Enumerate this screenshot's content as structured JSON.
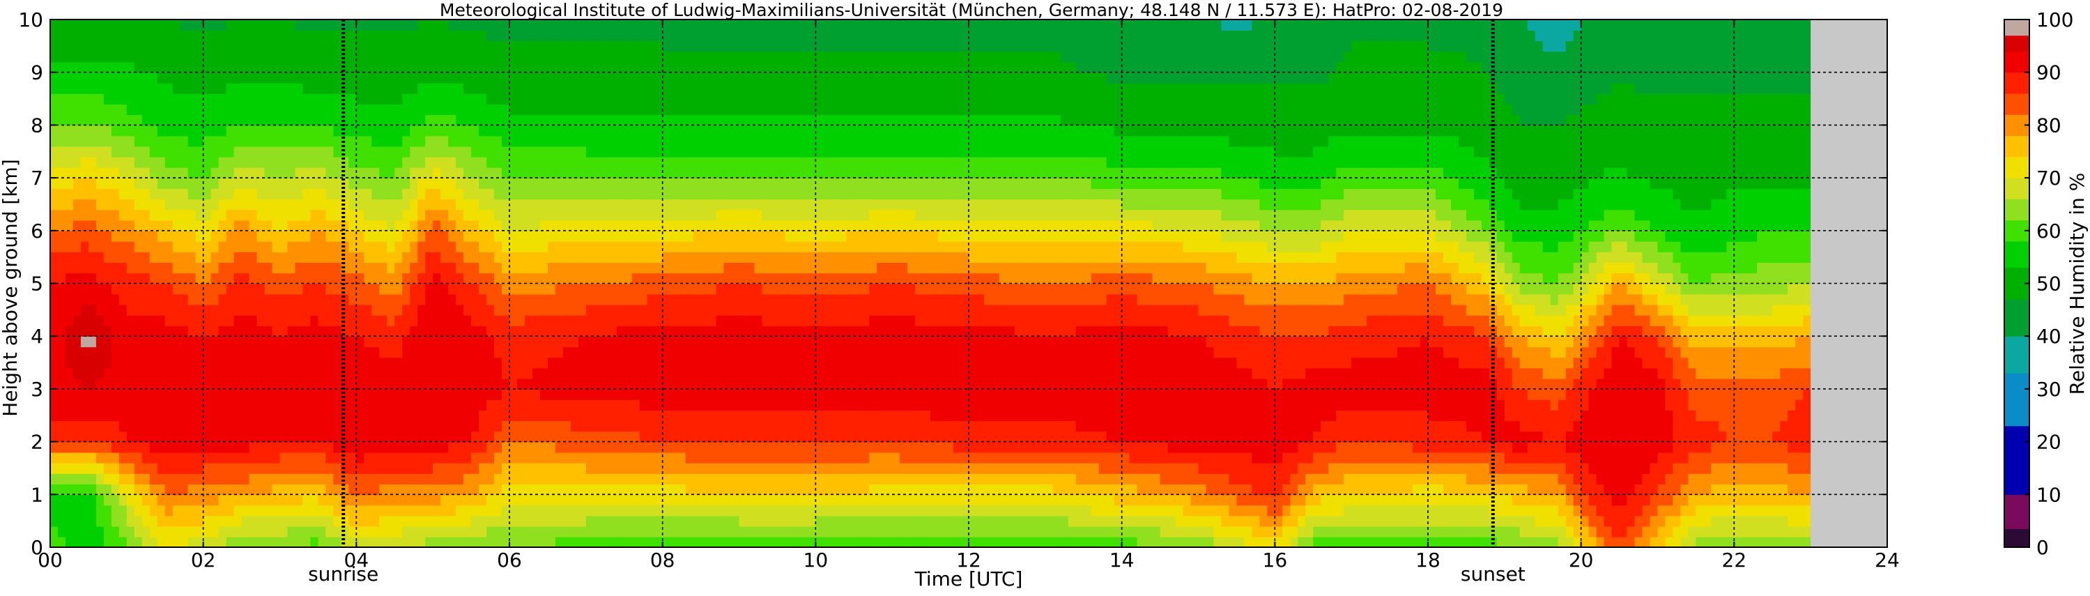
{
  "chart_data": {
    "type": "heatmap",
    "title": "Meteorological Institute of Ludwig-Maximilians-Universität (München, Germany; 48.148 N / 11.573 E):    HatPro: 02-08-2019",
    "xlabel": "Time [UTC]",
    "ylabel": "Height above ground [km]",
    "colorbar_label": "Relative Humidity in %",
    "xlim": [
      0,
      24
    ],
    "ylim": [
      0,
      10
    ],
    "x_ticks": [
      "00",
      "02",
      "04",
      "06",
      "08",
      "10",
      "12",
      "14",
      "16",
      "18",
      "20",
      "22",
      "24"
    ],
    "y_ticks": [
      "0",
      "1",
      "2",
      "3",
      "4",
      "5",
      "6",
      "7",
      "8",
      "9",
      "10"
    ],
    "colorbar_ticks": [
      "0",
      "10",
      "20",
      "30",
      "40",
      "50",
      "60",
      "70",
      "80",
      "90",
      "100"
    ],
    "grid": true,
    "data_end_hour": 23.0,
    "no_data_color": "#c8c8c8",
    "events": [
      {
        "label": "sunrise",
        "hour": 3.83
      },
      {
        "label": "sunset",
        "hour": 18.85
      }
    ],
    "colorscale": [
      {
        "from": 0,
        "to": 3.5,
        "color": "#2b0a33"
      },
      {
        "from": 3.5,
        "to": 10,
        "color": "#7a0a5c"
      },
      {
        "from": 10,
        "to": 23,
        "color": "#0000b0"
      },
      {
        "from": 23,
        "to": 33,
        "color": "#0a8cc8"
      },
      {
        "from": 33,
        "to": 40,
        "color": "#0aa8a0"
      },
      {
        "from": 40,
        "to": 47,
        "color": "#00a030"
      },
      {
        "from": 47,
        "to": 53,
        "color": "#00b000"
      },
      {
        "from": 53,
        "to": 58,
        "color": "#00d000"
      },
      {
        "from": 58,
        "to": 62,
        "color": "#40e000"
      },
      {
        "from": 62,
        "to": 66,
        "color": "#90e020"
      },
      {
        "from": 66,
        "to": 70,
        "color": "#d0e020"
      },
      {
        "from": 70,
        "to": 74,
        "color": "#f0e000"
      },
      {
        "from": 74,
        "to": 78,
        "color": "#ffc000"
      },
      {
        "from": 78,
        "to": 82,
        "color": "#ff9000"
      },
      {
        "from": 82,
        "to": 86,
        "color": "#ff5000"
      },
      {
        "from": 86,
        "to": 90,
        "color": "#ff2000"
      },
      {
        "from": 90,
        "to": 94,
        "color": "#f00000"
      },
      {
        "from": 94,
        "to": 97,
        "color": "#d80000"
      },
      {
        "from": 97,
        "to": 100,
        "color": "#c0a8a0"
      }
    ],
    "rh_profiles": [
      {
        "hour": 0.0,
        "rh": [
          60,
          55,
          88,
          92,
          92,
          90,
          82,
          72,
          62,
          55,
          48
        ]
      },
      {
        "hour": 0.5,
        "rh": [
          55,
          55,
          86,
          94,
          98,
          92,
          84,
          74,
          62,
          55,
          48
        ]
      },
      {
        "hour": 1.0,
        "rh": [
          60,
          70,
          90,
          92,
          92,
          88,
          80,
          70,
          60,
          54,
          48
        ]
      },
      {
        "hour": 1.5,
        "rh": [
          70,
          82,
          92,
          94,
          92,
          86,
          76,
          64,
          56,
          52,
          47
        ]
      },
      {
        "hour": 2.0,
        "rh": [
          68,
          80,
          92,
          93,
          90,
          82,
          72,
          62,
          56,
          50,
          46
        ]
      },
      {
        "hour": 2.5,
        "rh": [
          62,
          78,
          92,
          94,
          92,
          88,
          80,
          68,
          58,
          52,
          47
        ]
      },
      {
        "hour": 3.0,
        "rh": [
          62,
          76,
          90,
          93,
          90,
          84,
          74,
          66,
          58,
          52,
          47
        ]
      },
      {
        "hour": 3.5,
        "rh": [
          60,
          75,
          90,
          94,
          92,
          86,
          78,
          68,
          58,
          50,
          46
        ]
      },
      {
        "hour": 4.0,
        "rh": [
          68,
          82,
          94,
          94,
          90,
          84,
          74,
          64,
          56,
          50,
          46
        ]
      },
      {
        "hour": 4.5,
        "rh": [
          66,
          80,
          92,
          92,
          88,
          80,
          70,
          62,
          55,
          50,
          46
        ]
      },
      {
        "hour": 5.0,
        "rh": [
          64,
          80,
          92,
          94,
          94,
          92,
          84,
          72,
          60,
          52,
          47
        ]
      },
      {
        "hour": 5.5,
        "rh": [
          62,
          78,
          90,
          93,
          92,
          86,
          76,
          66,
          58,
          50,
          46
        ]
      },
      {
        "hour": 6.0,
        "rh": [
          62,
          72,
          82,
          90,
          88,
          80,
          70,
          62,
          55,
          48,
          46
        ]
      },
      {
        "hour": 7.0,
        "rh": [
          60,
          72,
          84,
          92,
          90,
          82,
          72,
          62,
          54,
          48,
          46
        ]
      },
      {
        "hour": 8.0,
        "rh": [
          58,
          72,
          86,
          92,
          92,
          84,
          72,
          62,
          54,
          48,
          46
        ]
      },
      {
        "hour": 9.0,
        "rh": [
          58,
          74,
          86,
          92,
          92,
          86,
          74,
          62,
          54,
          48,
          45
        ]
      },
      {
        "hour": 10.0,
        "rh": [
          58,
          74,
          86,
          92,
          92,
          84,
          72,
          62,
          54,
          48,
          45
        ]
      },
      {
        "hour": 11.0,
        "rh": [
          58,
          72,
          86,
          92,
          92,
          86,
          74,
          62,
          54,
          48,
          45
        ]
      },
      {
        "hour": 12.0,
        "rh": [
          58,
          72,
          88,
          94,
          92,
          84,
          72,
          62,
          54,
          48,
          45
        ]
      },
      {
        "hour": 13.0,
        "rh": [
          58,
          72,
          88,
          92,
          90,
          82,
          72,
          62,
          54,
          48,
          46
        ]
      },
      {
        "hour": 14.0,
        "rh": [
          60,
          76,
          90,
          94,
          92,
          84,
          72,
          60,
          52,
          46,
          42
        ]
      },
      {
        "hour": 15.0,
        "rh": [
          62,
          80,
          92,
          92,
          90,
          82,
          70,
          60,
          52,
          46,
          42
        ]
      },
      {
        "hour": 15.5,
        "rh": [
          68,
          84,
          92,
          92,
          88,
          80,
          68,
          58,
          50,
          46,
          38
        ]
      },
      {
        "hour": 16.0,
        "rh": [
          72,
          88,
          92,
          90,
          86,
          78,
          66,
          56,
          50,
          46,
          42
        ]
      },
      {
        "hour": 16.5,
        "rh": [
          60,
          76,
          90,
          92,
          86,
          78,
          66,
          56,
          50,
          46,
          44
        ]
      },
      {
        "hour": 17.0,
        "rh": [
          60,
          74,
          86,
          92,
          88,
          80,
          70,
          60,
          52,
          48,
          46
        ]
      },
      {
        "hour": 18.0,
        "rh": [
          60,
          72,
          88,
          92,
          90,
          82,
          70,
          60,
          52,
          48,
          46
        ]
      },
      {
        "hour": 18.8,
        "rh": [
          60,
          74,
          90,
          92,
          86,
          74,
          62,
          54,
          50,
          47,
          46
        ]
      },
      {
        "hour": 19.2,
        "rh": [
          62,
          76,
          92,
          86,
          78,
          64,
          56,
          50,
          47,
          44,
          40
        ]
      },
      {
        "hour": 19.7,
        "rh": [
          64,
          78,
          90,
          84,
          74,
          62,
          56,
          50,
          47,
          42,
          36
        ]
      },
      {
        "hour": 20.0,
        "rh": [
          72,
          86,
          92,
          88,
          80,
          66,
          58,
          52,
          48,
          44,
          40
        ]
      },
      {
        "hour": 20.5,
        "rh": [
          86,
          92,
          94,
          94,
          90,
          78,
          62,
          54,
          50,
          46,
          42
        ]
      },
      {
        "hour": 21.0,
        "rh": [
          74,
          86,
          92,
          92,
          86,
          70,
          58,
          52,
          48,
          46,
          44
        ]
      },
      {
        "hour": 21.5,
        "rh": [
          64,
          78,
          88,
          84,
          76,
          62,
          54,
          50,
          48,
          46,
          46
        ]
      },
      {
        "hour": 22.0,
        "rh": [
          62,
          76,
          86,
          84,
          76,
          64,
          56,
          52,
          48,
          46,
          46
        ]
      },
      {
        "hour": 22.5,
        "rh": [
          62,
          76,
          86,
          84,
          76,
          64,
          58,
          52,
          48,
          46,
          46
        ]
      },
      {
        "hour": 23.0,
        "rh": [
          64,
          78,
          88,
          86,
          78,
          66,
          58,
          52,
          48,
          46,
          46
        ]
      }
    ]
  }
}
